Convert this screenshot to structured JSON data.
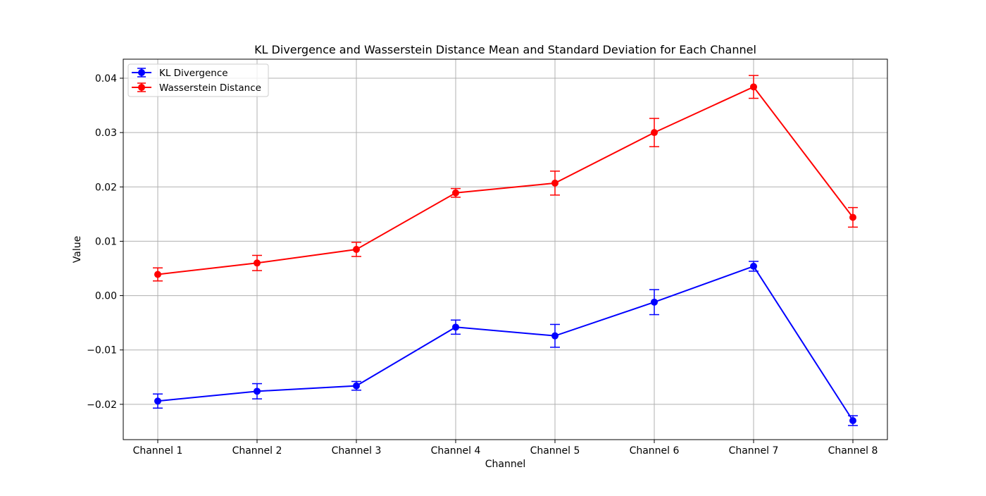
{
  "chart_data": {
    "type": "line",
    "title": "KL Divergence and Wasserstein Distance Mean and Standard Deviation for Each Channel",
    "xlabel": "Channel",
    "ylabel": "Value",
    "categories": [
      "Channel 1",
      "Channel 2",
      "Channel 3",
      "Channel 4",
      "Channel 5",
      "Channel 6",
      "Channel 7",
      "Channel 8"
    ],
    "ylim": [
      -0.0265,
      0.0435
    ],
    "yticks": [
      -0.02,
      -0.01,
      0.0,
      0.01,
      0.02,
      0.03,
      0.04
    ],
    "ytick_labels": [
      "−0.02",
      "−0.01",
      "0.00",
      "0.01",
      "0.02",
      "0.03",
      "0.04"
    ],
    "grid": true,
    "legend_position": "upper-left",
    "series": [
      {
        "name": "KL Divergence",
        "color": "#0000ff",
        "values": [
          -0.0194,
          -0.0176,
          -0.0166,
          -0.0058,
          -0.0074,
          -0.0012,
          0.0054,
          -0.023
        ],
        "errors": [
          0.0013,
          0.0014,
          0.0008,
          0.0013,
          0.0021,
          0.0023,
          0.0009,
          0.0009
        ]
      },
      {
        "name": "Wasserstein Distance",
        "color": "#ff0000",
        "values": [
          0.0039,
          0.006,
          0.0085,
          0.0189,
          0.0207,
          0.03,
          0.0384,
          0.0144
        ],
        "errors": [
          0.0012,
          0.0014,
          0.0013,
          0.0008,
          0.0022,
          0.0026,
          0.0021,
          0.0018
        ]
      }
    ]
  }
}
